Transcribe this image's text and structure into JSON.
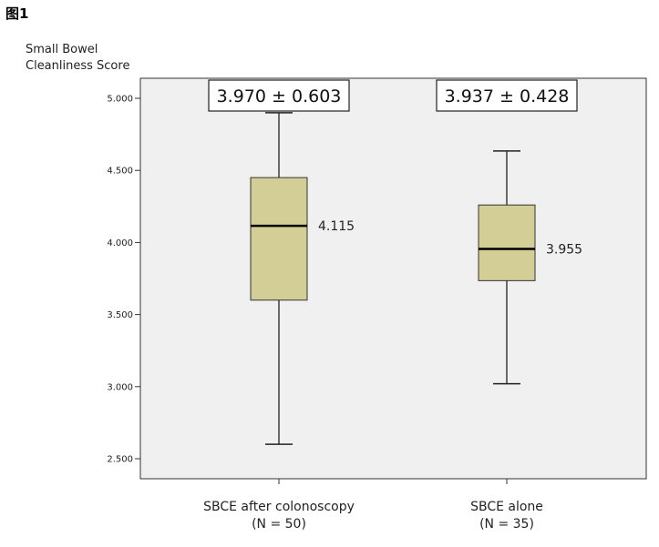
{
  "figure_label": "图1",
  "chart_data": {
    "type": "box",
    "title": "",
    "ylabel_lines": [
      "Small Bowel",
      "Cleanliness Score"
    ],
    "ylim": [
      2.4,
      5.12
    ],
    "yticks": [
      2.5,
      3.0,
      3.5,
      4.0,
      4.5,
      5.0
    ],
    "ytick_labels": [
      "2.500",
      "3.000",
      "3.500",
      "4.000",
      "4.500",
      "5.000"
    ],
    "box_color": "#d3ce96",
    "plot_bg": "#f0f0f0",
    "series": [
      {
        "name": "SBCE after colonoscopy",
        "n_label": "(N = 50)",
        "whisker_low": 2.6,
        "q1": 3.6,
        "median": 4.115,
        "q3": 4.45,
        "whisker_high": 4.9,
        "median_label": "4.115",
        "mean_sd": "3.970 ± 0.603"
      },
      {
        "name": "SBCE alone",
        "n_label": "(N = 35)",
        "whisker_low": 3.02,
        "q1": 3.735,
        "median": 3.955,
        "q3": 4.26,
        "whisker_high": 4.635,
        "median_label": "3.955",
        "mean_sd": "3.937 ± 0.428"
      }
    ]
  }
}
